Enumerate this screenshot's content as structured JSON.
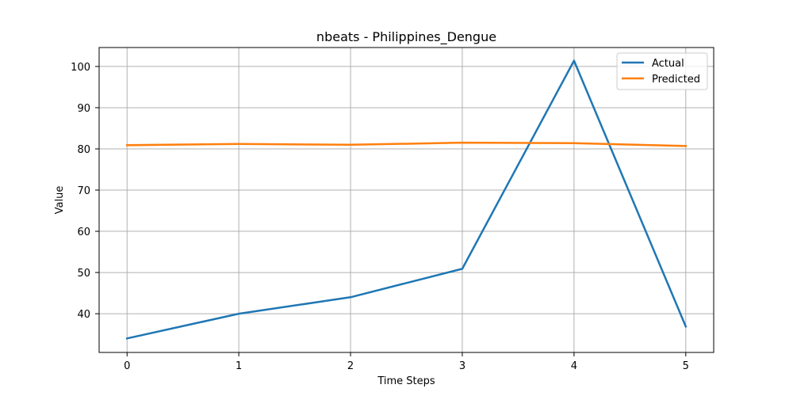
{
  "chart_data": {
    "type": "line",
    "title": "nbeats - Philippines_Dengue",
    "xlabel": "Time Steps",
    "ylabel": "Value",
    "x": [
      0,
      1,
      2,
      3,
      4,
      5
    ],
    "x_ticks": [
      "0",
      "1",
      "2",
      "3",
      "4",
      "5"
    ],
    "y_ticks": [
      "40",
      "50",
      "60",
      "70",
      "80",
      "90",
      "100"
    ],
    "xlim": [
      -0.25,
      5.25
    ],
    "ylim": [
      30.6,
      104.6
    ],
    "grid": true,
    "legend_position": "top-right",
    "series": [
      {
        "name": "Actual",
        "color": "#1f77b4",
        "values": [
          34.0,
          40.0,
          44.0,
          50.9,
          101.4,
          36.9
        ]
      },
      {
        "name": "Predicted",
        "color": "#ff7f0e",
        "values": [
          80.9,
          81.2,
          81.0,
          81.5,
          81.4,
          80.7
        ]
      }
    ]
  }
}
